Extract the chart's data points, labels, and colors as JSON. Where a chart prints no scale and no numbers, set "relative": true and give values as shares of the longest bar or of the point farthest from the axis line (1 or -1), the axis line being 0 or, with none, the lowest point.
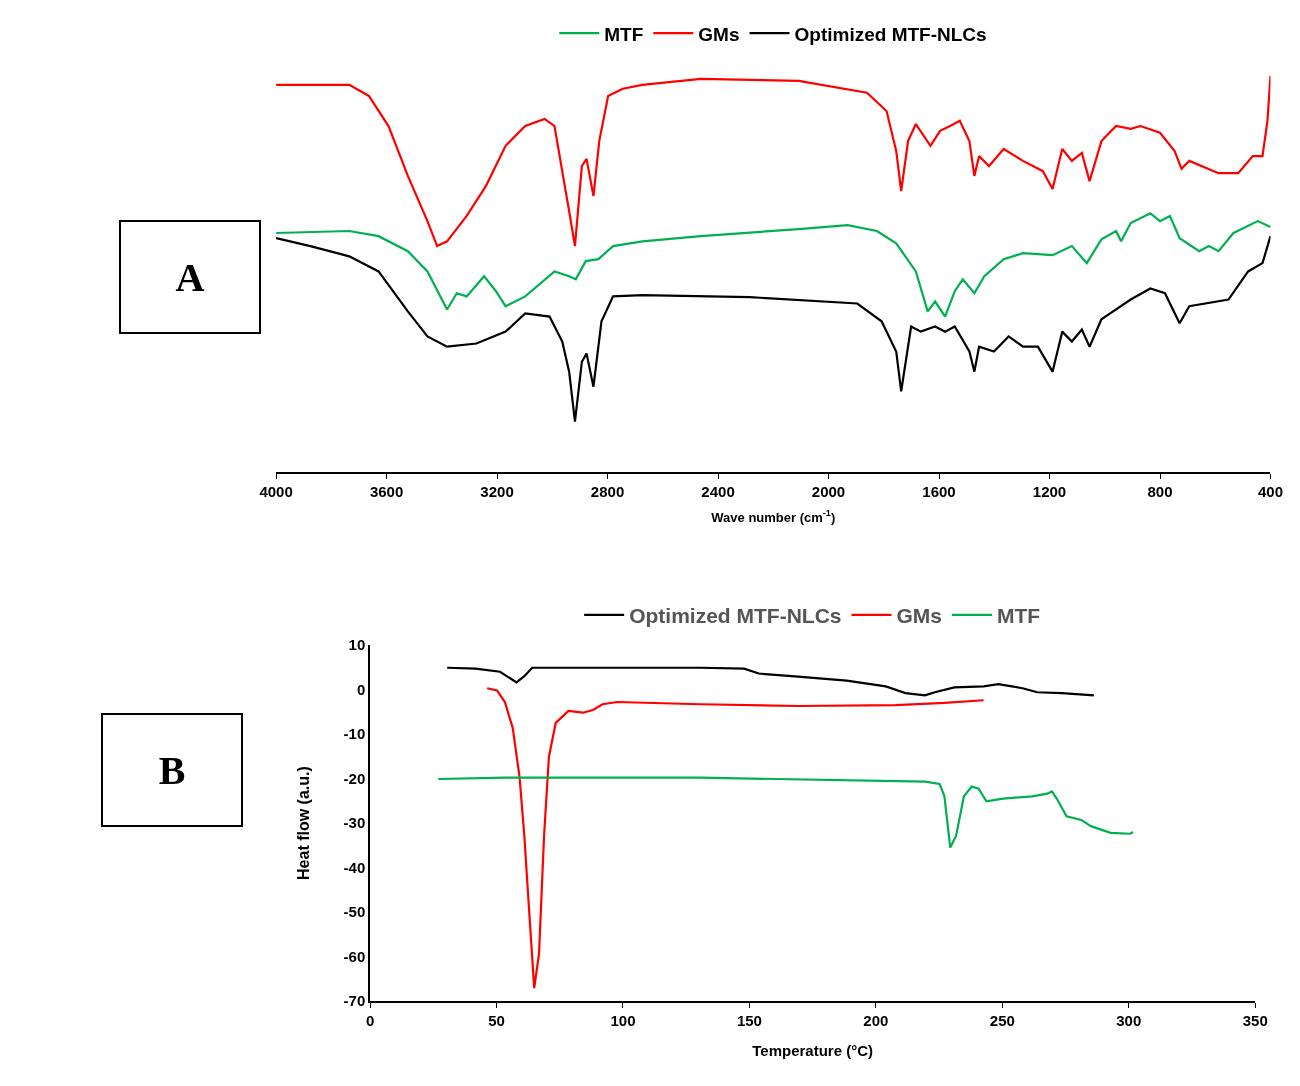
{
  "chart_data": [
    {
      "type": "line",
      "xlabel": "Wave number (cm$^{-1}$)",
      "relative": true,
      "xlim": [
        4000,
        400
      ],
      "xticks": [
        4000,
        3600,
        3200,
        2800,
        2400,
        2000,
        1600,
        1200,
        800,
        400
      ],
      "tick_labels": "x",
      "legend": "top",
      "annotations": [
        "A"
      ],
      "series": [
        {
          "name": "MTF",
          "color": "#00b050",
          "x": [
            4000,
            3735,
            3629,
            3523,
            3452,
            3381,
            3346,
            3310,
            3247,
            3204,
            3169,
            3098,
            2992,
            2939,
            2915,
            2879,
            2833,
            2780,
            2674,
            2462,
            2108,
            1931,
            1825,
            1755,
            1684,
            1641,
            1614,
            1578,
            1543,
            1514,
            1472,
            1436,
            1366,
            1296,
            1189,
            1119,
            1065,
            1012,
            959,
            941,
            906,
            835,
            800,
            764,
            729,
            658,
            623,
            588,
            534,
            446,
            400
          ],
          "values": [
            0.603,
            0.608,
            0.595,
            0.557,
            0.506,
            0.41,
            0.451,
            0.443,
            0.494,
            0.456,
            0.418,
            0.443,
            0.506,
            0.494,
            0.486,
            0.532,
            0.537,
            0.57,
            0.582,
            0.595,
            0.613,
            0.623,
            0.608,
            0.577,
            0.506,
            0.405,
            0.43,
            0.392,
            0.456,
            0.486,
            0.451,
            0.494,
            0.537,
            0.552,
            0.547,
            0.57,
            0.527,
            0.587,
            0.608,
            0.582,
            0.628,
            0.653,
            0.633,
            0.646,
            0.59,
            0.557,
            0.57,
            0.557,
            0.603,
            0.633,
            0.618
          ]
        },
        {
          "name": "GMs",
          "color": "#ff0000",
          "x": [
            4000,
            3735,
            3664,
            3593,
            3523,
            3452,
            3417,
            3381,
            3310,
            3240,
            3169,
            3098,
            3028,
            2992,
            2964,
            2939,
            2918,
            2893,
            2876,
            2851,
            2830,
            2798,
            2745,
            2674,
            2462,
            2108,
            1861,
            1790,
            1755,
            1737,
            1712,
            1684,
            1631,
            1596,
            1560,
            1525,
            1490,
            1472,
            1455,
            1419,
            1366,
            1296,
            1224,
            1189,
            1154,
            1119,
            1083,
            1055,
            1012,
            959,
            906,
            871,
            800,
            747,
            722,
            694,
            588,
            517,
            464,
            429,
            411,
            400
          ],
          "values": [
            0.977,
            0.977,
            0.949,
            0.873,
            0.747,
            0.633,
            0.57,
            0.582,
            0.646,
            0.722,
            0.823,
            0.873,
            0.891,
            0.873,
            0.759,
            0.658,
            0.57,
            0.772,
            0.79,
            0.696,
            0.835,
            0.949,
            0.967,
            0.977,
            0.992,
            0.987,
            0.957,
            0.911,
            0.81,
            0.709,
            0.835,
            0.878,
            0.823,
            0.861,
            0.873,
            0.886,
            0.835,
            0.747,
            0.797,
            0.772,
            0.815,
            0.785,
            0.759,
            0.714,
            0.815,
            0.785,
            0.805,
            0.734,
            0.835,
            0.873,
            0.866,
            0.873,
            0.856,
            0.81,
            0.765,
            0.785,
            0.754,
            0.754,
            0.797,
            0.797,
            0.886,
            1
          ]
        },
        {
          "name": "Optimized MTF-NLCs",
          "color": "#000000",
          "x": [
            4000,
            3876,
            3735,
            3629,
            3523,
            3452,
            3381,
            3275,
            3169,
            3098,
            3010,
            2964,
            2939,
            2918,
            2893,
            2876,
            2851,
            2822,
            2780,
            2674,
            2285,
            1896,
            1808,
            1755,
            1737,
            1701,
            1666,
            1614,
            1578,
            1543,
            1490,
            1472,
            1455,
            1401,
            1348,
            1296,
            1242,
            1189,
            1154,
            1119,
            1083,
            1055,
            1012,
            959,
            906,
            835,
            782,
            729,
            694,
            552,
            481,
            429,
            400
          ],
          "values": [
            0.59,
            0.57,
            0.544,
            0.506,
            0.405,
            0.342,
            0.316,
            0.324,
            0.354,
            0.4,
            0.392,
            0.329,
            0.253,
            0.127,
            0.278,
            0.299,
            0.215,
            0.38,
            0.443,
            0.446,
            0.441,
            0.425,
            0.38,
            0.304,
            0.203,
            0.367,
            0.354,
            0.367,
            0.354,
            0.367,
            0.304,
            0.253,
            0.316,
            0.304,
            0.342,
            0.316,
            0.316,
            0.253,
            0.354,
            0.329,
            0.359,
            0.316,
            0.385,
            0.41,
            0.435,
            0.463,
            0.451,
            0.375,
            0.418,
            0.435,
            0.506,
            0.527,
            0.595
          ]
        }
      ]
    },
    {
      "type": "line",
      "xlabel": "Temperature (°C)",
      "ylabel": "Heat flow (a.u.)",
      "xlim": [
        0,
        350
      ],
      "xticks": [
        0,
        50,
        100,
        150,
        200,
        250,
        300,
        350
      ],
      "ylim": [
        -70,
        10
      ],
      "yticks": [
        -70,
        -60,
        -50,
        -40,
        -30,
        -20,
        -10,
        0,
        10
      ],
      "legend": "top",
      "annotations": [
        "B"
      ],
      "series": [
        {
          "name": "Optimized MTF-NLCs",
          "color": "#000000",
          "x": [
            30.5,
            41.7,
            51.4,
            57.9,
            61,
            64.1,
            91.9,
            130.6,
            147.9,
            153.7,
            169.2,
            188.5,
            203.9,
            211.7,
            219.4,
            223.3,
            231,
            242.6,
            248.4,
            258,
            263.8,
            273.5,
            286.2
          ],
          "values": [
            4.9,
            4.7,
            4.0,
            1.6,
            3.0,
            4.9,
            4.9,
            4.9,
            4.7,
            3.6,
            2.9,
            2.0,
            0.7,
            -0.8,
            -1.3,
            -0.6,
            0.5,
            0.7,
            1.2,
            0.3,
            -0.6,
            -0.8,
            -1.3
          ]
        },
        {
          "name": "GMs",
          "color": "#ff0000",
          "x": [
            46.3,
            50.2,
            53.3,
            56.4,
            59.1,
            61,
            63,
            64.9,
            66.8,
            68.8,
            70.7,
            73.4,
            78.4,
            84.2,
            88.1,
            91.9,
            97.7,
            130.6,
            169.2,
            207.8,
            227.1,
            242.6
          ],
          "values": [
            0.3,
            -0.2,
            -2.8,
            -8.6,
            -19.6,
            -32.9,
            -50.6,
            -67.1,
            -59.4,
            -32.9,
            -15.2,
            -7.5,
            -4.8,
            -5.2,
            -4.6,
            -3.3,
            -2.8,
            -3.3,
            -3.7,
            -3.5,
            -3.0,
            -2.4
          ]
        },
        {
          "name": "MTF",
          "color": "#00b050",
          "x": [
            27,
            53.3,
            130.6,
            219.4,
            225.2,
            227.1,
            229.4,
            231.7,
            234.8,
            237.9,
            240.6,
            243.7,
            250.3,
            261.9,
            267.7,
            269.6,
            271.5,
            275.4,
            281.2,
            285,
            292.8,
            300.5,
            301.7
          ],
          "values": [
            -20.1,
            -19.8,
            -19.8,
            -20.7,
            -21.2,
            -24,
            -35.5,
            -32.9,
            -24,
            -21.8,
            -22.3,
            -25.1,
            -24.5,
            -24,
            -23.4,
            -22.9,
            -24.5,
            -28.5,
            -29.3,
            -30.7,
            -32.2,
            -32.4,
            -32.0
          ]
        }
      ]
    }
  ]
}
